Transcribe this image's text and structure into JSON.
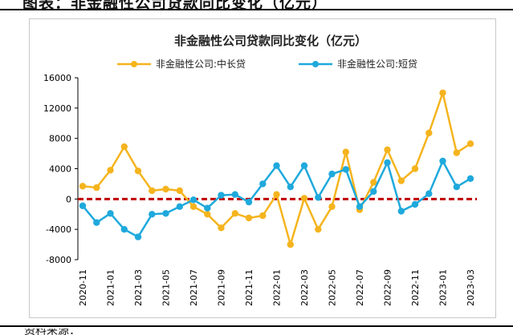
{
  "page_header": "图表：非金融性公司贷款同比变化（亿元）",
  "footer_snip": "资料来源：",
  "chart_data": {
    "type": "line",
    "title": "非金融性公司贷款同比变化（亿元）",
    "categories": [
      "2020-11",
      "2020-12",
      "2021-01",
      "2021-02",
      "2021-03",
      "2021-04",
      "2021-05",
      "2021-06",
      "2021-07",
      "2021-08",
      "2021-09",
      "2021-10",
      "2021-11",
      "2021-12",
      "2022-01",
      "2022-02",
      "2022-03",
      "2022-04",
      "2022-05",
      "2022-06",
      "2022-07",
      "2022-08",
      "2022-09",
      "2022-10",
      "2022-11",
      "2022-12",
      "2023-01",
      "2023-02",
      "2023-03"
    ],
    "x_tick_labels": [
      "2020-11",
      "2021-01",
      "2021-03",
      "2021-05",
      "2021-07",
      "2021-09",
      "2021-11",
      "2022-01",
      "2022-03",
      "2022-05",
      "2022-07",
      "2022-09",
      "2022-11",
      "2023-01",
      "2023-03"
    ],
    "ylim": [
      -8000,
      16000
    ],
    "yticks": [
      16000,
      12000,
      8000,
      4000,
      0,
      -4000,
      -8000
    ],
    "series": [
      {
        "name": "非金融性公司:中长贷",
        "color": "#f5b41e",
        "values": [
          1700,
          1500,
          3800,
          6900,
          3700,
          1100,
          1300,
          1100,
          -1000,
          -2000,
          -3800,
          -1900,
          -2500,
          -2200,
          600,
          -6000,
          100,
          -4000,
          -1000,
          6200,
          -1400,
          2200,
          6500,
          2400,
          4000,
          8700,
          14000,
          6100,
          7300
        ]
      },
      {
        "name": "非金融性公司:短贷",
        "color": "#1fa9dc",
        "values": [
          -900,
          -3100,
          -1900,
          -4000,
          -5000,
          -2000,
          -1900,
          -1000,
          -100,
          -1200,
          500,
          600,
          -400,
          2000,
          4400,
          1600,
          4400,
          200,
          3300,
          3900,
          -1000,
          1000,
          4800,
          -1600,
          -700,
          700,
          5000,
          1600,
          2700
        ]
      }
    ],
    "zero_line_color": "#c00000",
    "legend_position": "top",
    "grid": false
  }
}
